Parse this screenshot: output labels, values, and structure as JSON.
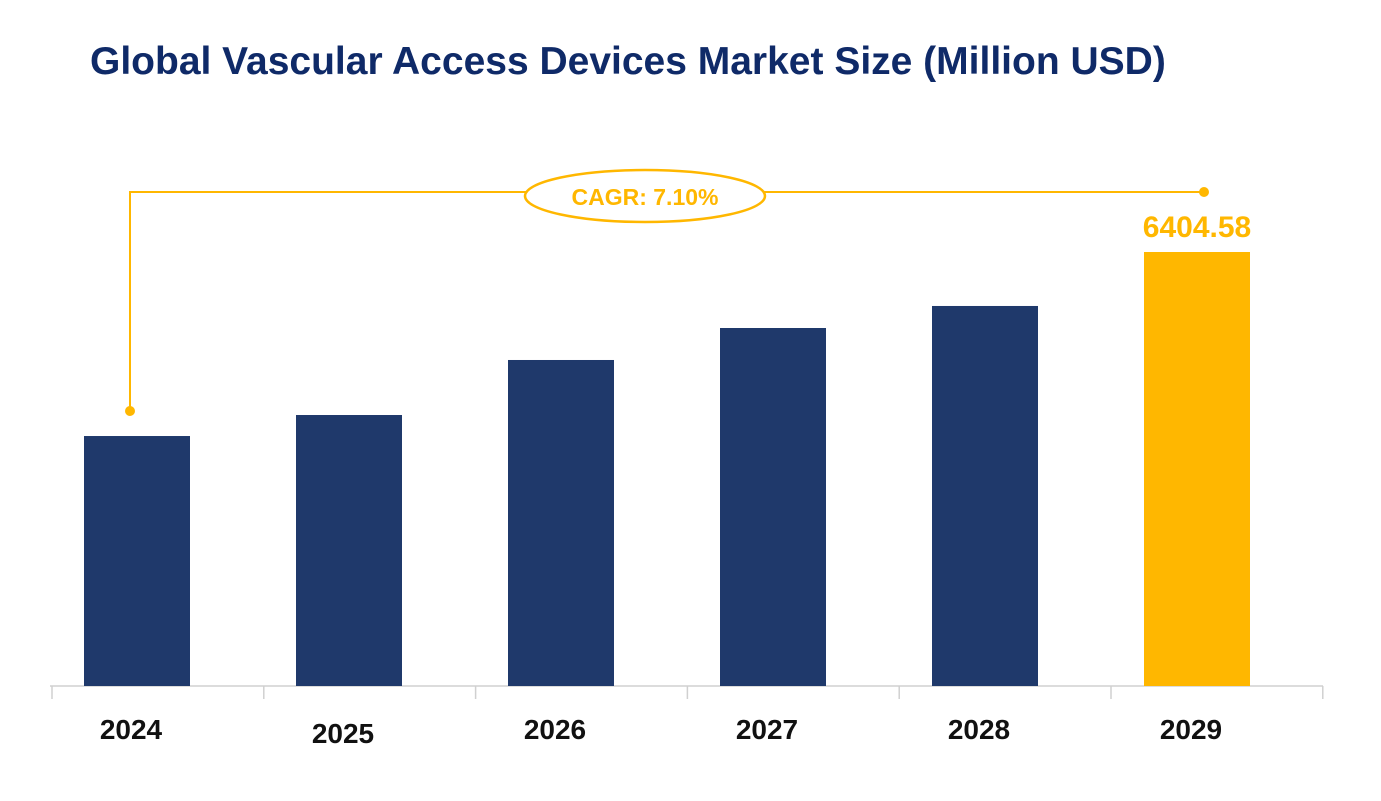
{
  "chart_data": {
    "type": "bar",
    "title": "Global Vascular Access Devices Market Size (Million USD)",
    "categories": [
      "2024",
      "2025",
      "2026",
      "2027",
      "2028",
      "2029"
    ],
    "values": [
      3689,
      3999,
      4811,
      5283,
      5608,
      6404.58
    ],
    "data_labels": {
      "2029": "6404.58"
    },
    "annotation": "CAGR: 7.10%",
    "xlabel": "",
    "ylabel": "",
    "ylim": [
      0,
      6404.58
    ],
    "grid": false,
    "colors": {
      "bar": "#1f396b",
      "highlight": "#ffb700",
      "title": "#0f2a68"
    }
  }
}
